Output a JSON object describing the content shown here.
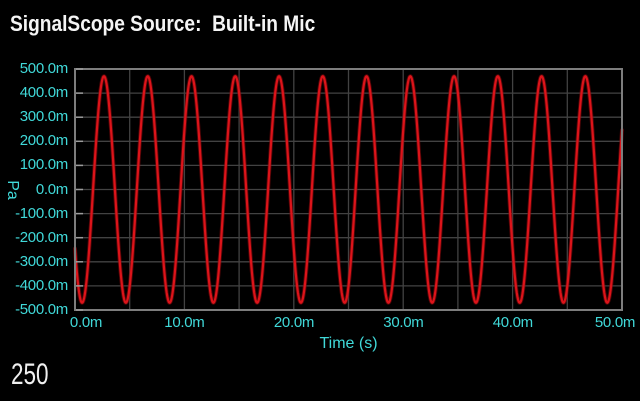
{
  "header": {
    "title": "SignalScope Source:  Built-in Mic"
  },
  "footer": {
    "readout": "250"
  },
  "chart": {
    "ylabel": "Pa",
    "xlabel": "Time (s)",
    "y_tick_labels": [
      "500.0m",
      "400.0m",
      "300.0m",
      "200.0m",
      "100.0m",
      "0.0m",
      "-100.0m",
      "-200.0m",
      "-300.0m",
      "-400.0m",
      "-500.0m"
    ],
    "x_tick_labels": [
      "0.0m",
      "10.0m",
      "20.0m",
      "30.0m",
      "40.0m",
      "50.0m"
    ],
    "colors": {
      "background": "#000000",
      "title_text": "#f5f5f5",
      "axis_text": "#40d9d9",
      "trace": "#dc141a",
      "trace_halo": "#8f0a0d",
      "grid": "#424242",
      "border": "#7d7d7d",
      "tick_mark": "#9c9c9c"
    }
  },
  "chart_data": {
    "type": "line",
    "title": "SignalScope Source:  Built-in Mic",
    "xlabel": "Time (s)",
    "ylabel": "Pa",
    "xlim_s": [
      0,
      0.05
    ],
    "ylim_pa": [
      -0.5,
      0.5
    ],
    "x_ticks_s": [
      0,
      0.01,
      0.02,
      0.03,
      0.04,
      0.05
    ],
    "y_ticks_pa": [
      0.5,
      0.4,
      0.3,
      0.2,
      0.1,
      0,
      -0.1,
      -0.2,
      -0.3,
      -0.4,
      -0.5
    ],
    "grid": {
      "on": true,
      "x_spacing_s": 0.005,
      "y_spacing_pa": 0.1
    },
    "legend": "none",
    "series": [
      {
        "name": "Built-in Mic",
        "color": "#dc141a",
        "waveform": {
          "shape": "sine",
          "frequency_hz": 250,
          "amplitude_pa": 0.47,
          "offset_pa": 0,
          "phase_rad": 0.55,
          "polarity": -1,
          "duration_s": 0.05
        }
      }
    ],
    "readout_value": "250"
  }
}
